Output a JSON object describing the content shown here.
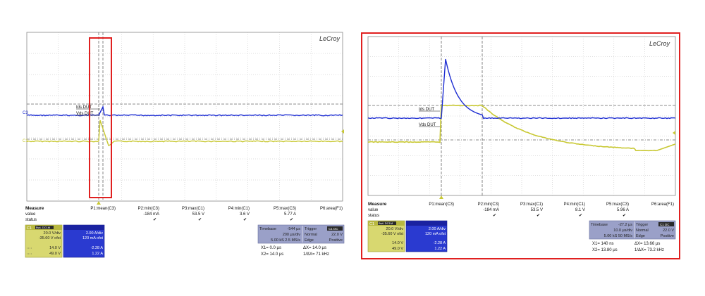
{
  "left": {
    "brand": "LeCroy",
    "channel_markers": {
      "c3": "C3",
      "c1": "C1"
    },
    "annotations": {
      "ids": "Ids DUT",
      "vds": "Vds DUT"
    },
    "measure": {
      "title": "Measure",
      "row_value": "value",
      "row_status": "status",
      "cols": [
        {
          "name": "P1:mean(C3)",
          "value": ""
        },
        {
          "name": "P2:min(C3)",
          "value": "-184 mA"
        },
        {
          "name": "P3:max(C1)",
          "value": "53.5 V"
        },
        {
          "name": "P4:min(C1)",
          "value": "3.6 V"
        },
        {
          "name": "P5:max(C3)",
          "value": "5.77 A"
        },
        {
          "name": "P6:area(F1)",
          "value": ""
        }
      ]
    },
    "c1_box": {
      "tag": "C1",
      "badge": "BwL DC1M",
      "vdiv": "20.0 V/div",
      "ofst": "-35.60 V ofst",
      "v1": "14.0 V",
      "v2": "49.0 V"
    },
    "c3_box": {
      "vdiv": "2.00 A/div",
      "ofst": "120 mA ofst",
      "v1": "-2.28 A",
      "v2": "1.22 A"
    },
    "timebase": {
      "label": "Timebase",
      "value": "-544 μs",
      "div": "200 μs/div",
      "rate": "5.00 kS  2.5 MS/s"
    },
    "trigger": {
      "label": "Trigger",
      "tag": "C1 DC",
      "mode": "Normal",
      "level": "22.0 V",
      "type": "Edge",
      "slope": "Positive"
    },
    "cursors": {
      "x1": "X1=   0.0 μs",
      "dx": "ΔX=  14.0 μs",
      "x2": "X2=  14.0 μs",
      "fx": "1/ΔX=  71 kHz"
    }
  },
  "right": {
    "brand": "LeCroy",
    "annotations": {
      "ids": "Ids DUT",
      "vds": "Vds DUT"
    },
    "measure": {
      "title": "Measure",
      "row_value": "value",
      "row_status": "status",
      "cols": [
        {
          "name": "P1:mean(C3)",
          "value": ""
        },
        {
          "name": "P2:min(C3)",
          "value": "-184 mA"
        },
        {
          "name": "P3:max(C1)",
          "value": "53.5 V"
        },
        {
          "name": "P4:min(C1)",
          "value": "8.1 V"
        },
        {
          "name": "P5:max(C3)",
          "value": "5.96 A"
        },
        {
          "name": "P6:area(F1)",
          "value": ""
        }
      ]
    },
    "c1_box": {
      "tag": "C1",
      "badge": "BwL DC1M",
      "vdiv": "20.0 V/div",
      "ofst": "-35.60 V ofst",
      "v1": "14.0 V",
      "v2": "49.0 V"
    },
    "c3_box": {
      "vdiv": "2.00 A/div",
      "ofst": "120 mA ofst",
      "v1": "-2.28 A",
      "v2": "1.22 A"
    },
    "timebase": {
      "label": "Timebase",
      "value": "-27.2 μs",
      "div": "10.0 μs/div",
      "rate": "5.00 kS  50 MS/s"
    },
    "trigger": {
      "label": "Trigger",
      "tag": "C1 DC",
      "mode": "Normal",
      "level": "22.0 V",
      "type": "Edge",
      "slope": "Positive"
    },
    "cursors": {
      "x1": "X1=   140 ns",
      "dx": "ΔX=  13.66 μs",
      "x2": "X2=  13.80 μs",
      "fx": "1/ΔX=  73.2 kHz"
    }
  },
  "colors": {
    "ch1": "#c8c832",
    "ch3": "#1e2ed2",
    "highlight": "#e02020",
    "grid": "#a0a0a0"
  }
}
